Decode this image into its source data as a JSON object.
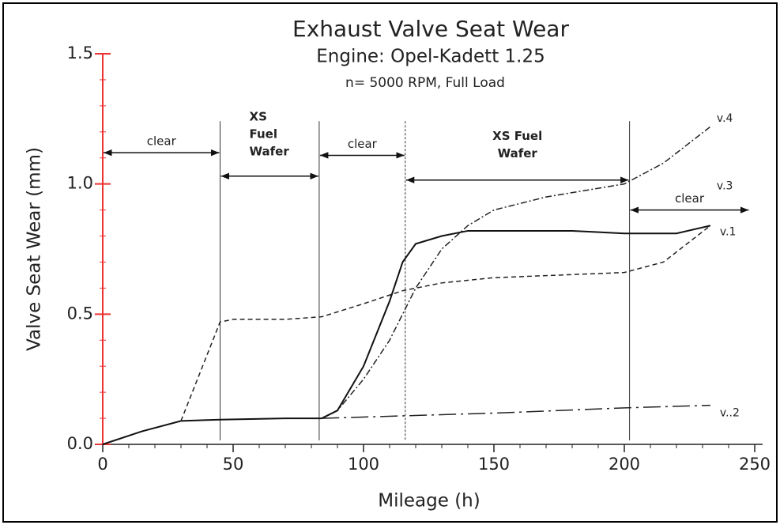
{
  "chart_data": {
    "type": "line",
    "title": "Exhaust Valve Seat Wear",
    "subtitle": "Engine:  Opel-Kadett  1.25",
    "note": "n= 5000 RPM,  Full Load",
    "xlabel": "Mileage (h)",
    "ylabel": "Valve Seat Wear (mm)",
    "xlim": [
      0,
      250
    ],
    "ylim": [
      0,
      1.5
    ],
    "xticks": [
      0,
      50,
      100,
      150,
      200,
      250
    ],
    "yticks": [
      {
        "value": 0,
        "label": "0.0"
      },
      {
        "value": 0.5,
        "label": "0.5"
      },
      {
        "value": 1,
        "label": "1.0"
      },
      {
        "value": 1.5,
        "label": "1.5"
      }
    ],
    "vlines": [
      45,
      83,
      116,
      202
    ],
    "annotations": [
      {
        "lines": [
          "clear"
        ],
        "x": [
          0,
          45
        ],
        "y": 1.12
      },
      {
        "lines": [
          "XS",
          "Fuel",
          "Wafer"
        ],
        "x": [
          45,
          83
        ],
        "y": 1.03
      },
      {
        "lines": [
          "clear"
        ],
        "x": [
          83,
          116
        ],
        "y": 1.11
      },
      {
        "lines": [
          "XS Fuel",
          "Wafer"
        ],
        "x": [
          116,
          202
        ],
        "y": 1.015
      },
      {
        "lines": [
          "clear"
        ],
        "x": [
          202,
          248
        ],
        "y": 0.9
      }
    ],
    "series": [
      {
        "name": "v.4",
        "color": "#222",
        "dash": "dashdot",
        "x": [
          84,
          90,
          100,
          110,
          120,
          130,
          140,
          150,
          170,
          200,
          215,
          233
        ],
        "values": [
          0.1,
          0.13,
          0.25,
          0.4,
          0.6,
          0.75,
          0.84,
          0.9,
          0.95,
          1.0,
          1.08,
          1.22
        ]
      },
      {
        "name": "v.1",
        "color": "#111",
        "dash": "solid",
        "x": [
          0,
          15,
          30,
          45,
          70,
          84,
          90,
          100,
          110,
          115,
          120,
          130,
          140,
          160,
          180,
          200,
          220,
          233
        ],
        "values": [
          0,
          0.05,
          0.09,
          0.095,
          0.1,
          0.1,
          0.13,
          0.3,
          0.55,
          0.7,
          0.77,
          0.8,
          0.82,
          0.82,
          0.82,
          0.81,
          0.81,
          0.84
        ]
      },
      {
        "name": "v.3",
        "color": "#222",
        "dash": "dashed",
        "x": [
          30,
          45,
          50,
          70,
          84,
          100,
          115,
          130,
          150,
          200,
          215,
          233
        ],
        "values": [
          0.09,
          0.47,
          0.48,
          0.48,
          0.49,
          0.54,
          0.59,
          0.62,
          0.64,
          0.66,
          0.7,
          0.84
        ]
      },
      {
        "name": "v..2",
        "color": "#222",
        "dash": "longdashdot",
        "x": [
          84,
          150,
          200,
          233
        ],
        "values": [
          0.1,
          0.12,
          0.14,
          0.15
        ]
      }
    ]
  }
}
